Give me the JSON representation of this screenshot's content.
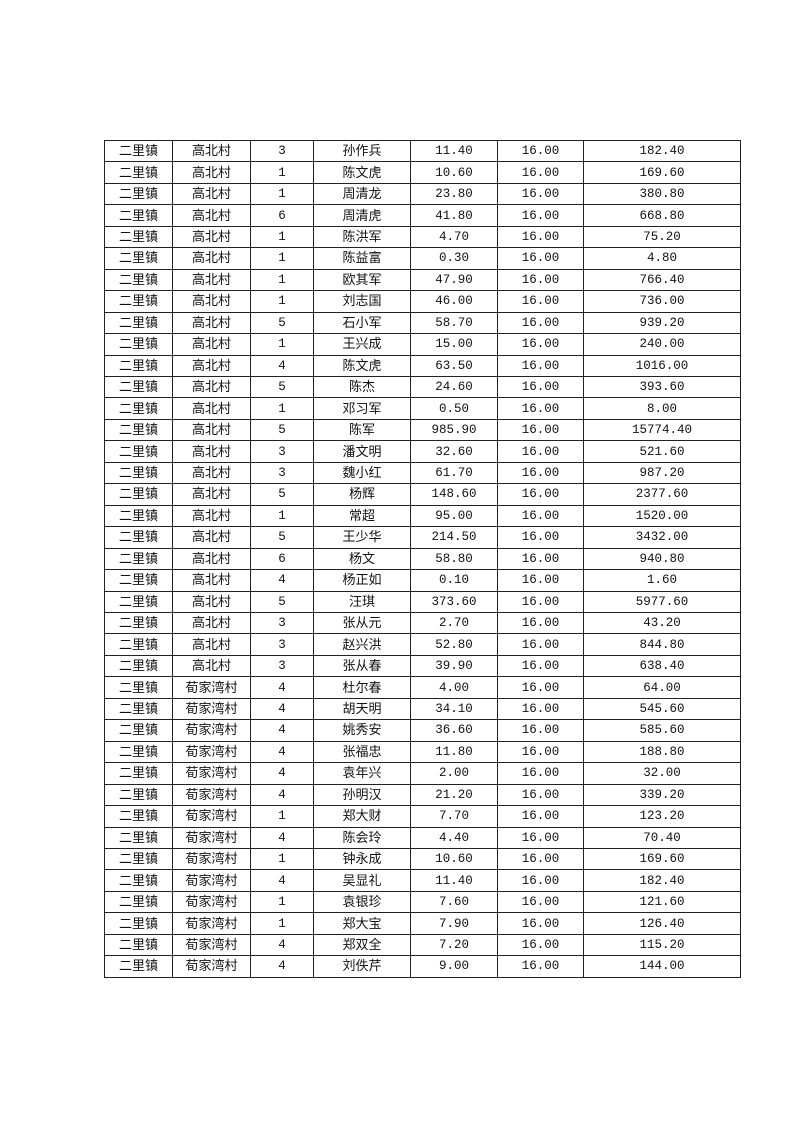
{
  "table": {
    "rows": [
      [
        "二里镇",
        "高北村",
        "3",
        "孙作兵",
        "11.40",
        "16.00",
        "182.40"
      ],
      [
        "二里镇",
        "高北村",
        "1",
        "陈文虎",
        "10.60",
        "16.00",
        "169.60"
      ],
      [
        "二里镇",
        "高北村",
        "1",
        "周清龙",
        "23.80",
        "16.00",
        "380.80"
      ],
      [
        "二里镇",
        "高北村",
        "6",
        "周清虎",
        "41.80",
        "16.00",
        "668.80"
      ],
      [
        "二里镇",
        "高北村",
        "1",
        "陈洪军",
        "4.70",
        "16.00",
        "75.20"
      ],
      [
        "二里镇",
        "高北村",
        "1",
        "陈益富",
        "0.30",
        "16.00",
        "4.80"
      ],
      [
        "二里镇",
        "高北村",
        "1",
        "欧其军",
        "47.90",
        "16.00",
        "766.40"
      ],
      [
        "二里镇",
        "高北村",
        "1",
        "刘志国",
        "46.00",
        "16.00",
        "736.00"
      ],
      [
        "二里镇",
        "高北村",
        "5",
        "石小军",
        "58.70",
        "16.00",
        "939.20"
      ],
      [
        "二里镇",
        "高北村",
        "1",
        "王兴成",
        "15.00",
        "16.00",
        "240.00"
      ],
      [
        "二里镇",
        "高北村",
        "4",
        "陈文虎",
        "63.50",
        "16.00",
        "1016.00"
      ],
      [
        "二里镇",
        "高北村",
        "5",
        "陈杰",
        "24.60",
        "16.00",
        "393.60"
      ],
      [
        "二里镇",
        "高北村",
        "1",
        "邓习军",
        "0.50",
        "16.00",
        "8.00"
      ],
      [
        "二里镇",
        "高北村",
        "5",
        "陈军",
        "985.90",
        "16.00",
        "15774.40"
      ],
      [
        "二里镇",
        "高北村",
        "3",
        "潘文明",
        "32.60",
        "16.00",
        "521.60"
      ],
      [
        "二里镇",
        "高北村",
        "3",
        "魏小红",
        "61.70",
        "16.00",
        "987.20"
      ],
      [
        "二里镇",
        "高北村",
        "5",
        "杨辉",
        "148.60",
        "16.00",
        "2377.60"
      ],
      [
        "二里镇",
        "高北村",
        "1",
        "常超",
        "95.00",
        "16.00",
        "1520.00"
      ],
      [
        "二里镇",
        "高北村",
        "5",
        "王少华",
        "214.50",
        "16.00",
        "3432.00"
      ],
      [
        "二里镇",
        "高北村",
        "6",
        "杨文",
        "58.80",
        "16.00",
        "940.80"
      ],
      [
        "二里镇",
        "高北村",
        "4",
        "杨正如",
        "0.10",
        "16.00",
        "1.60"
      ],
      [
        "二里镇",
        "高北村",
        "5",
        "汪琪",
        "373.60",
        "16.00",
        "5977.60"
      ],
      [
        "二里镇",
        "高北村",
        "3",
        "张从元",
        "2.70",
        "16.00",
        "43.20"
      ],
      [
        "二里镇",
        "高北村",
        "3",
        "赵兴洪",
        "52.80",
        "16.00",
        "844.80"
      ],
      [
        "二里镇",
        "高北村",
        "3",
        "张从春",
        "39.90",
        "16.00",
        "638.40"
      ],
      [
        "二里镇",
        "荀家湾村",
        "4",
        "杜尔春",
        "4.00",
        "16.00",
        "64.00"
      ],
      [
        "二里镇",
        "荀家湾村",
        "4",
        "胡天明",
        "34.10",
        "16.00",
        "545.60"
      ],
      [
        "二里镇",
        "荀家湾村",
        "4",
        "姚秀安",
        "36.60",
        "16.00",
        "585.60"
      ],
      [
        "二里镇",
        "荀家湾村",
        "4",
        "张福忠",
        "11.80",
        "16.00",
        "188.80"
      ],
      [
        "二里镇",
        "荀家湾村",
        "4",
        "袁年兴",
        "2.00",
        "16.00",
        "32.00"
      ],
      [
        "二里镇",
        "荀家湾村",
        "4",
        "孙明汉",
        "21.20",
        "16.00",
        "339.20"
      ],
      [
        "二里镇",
        "荀家湾村",
        "1",
        "郑大财",
        "7.70",
        "16.00",
        "123.20"
      ],
      [
        "二里镇",
        "荀家湾村",
        "4",
        "陈会玲",
        "4.40",
        "16.00",
        "70.40"
      ],
      [
        "二里镇",
        "荀家湾村",
        "1",
        "钟永成",
        "10.60",
        "16.00",
        "169.60"
      ],
      [
        "二里镇",
        "荀家湾村",
        "4",
        "吴显礼",
        "11.40",
        "16.00",
        "182.40"
      ],
      [
        "二里镇",
        "荀家湾村",
        "1",
        "袁银珍",
        "7.60",
        "16.00",
        "121.60"
      ],
      [
        "二里镇",
        "荀家湾村",
        "1",
        "郑大宝",
        "7.90",
        "16.00",
        "126.40"
      ],
      [
        "二里镇",
        "荀家湾村",
        "4",
        "郑双全",
        "7.20",
        "16.00",
        "115.20"
      ],
      [
        "二里镇",
        "荀家湾村",
        "4",
        "刘佚芹",
        "9.00",
        "16.00",
        "144.00"
      ]
    ]
  }
}
